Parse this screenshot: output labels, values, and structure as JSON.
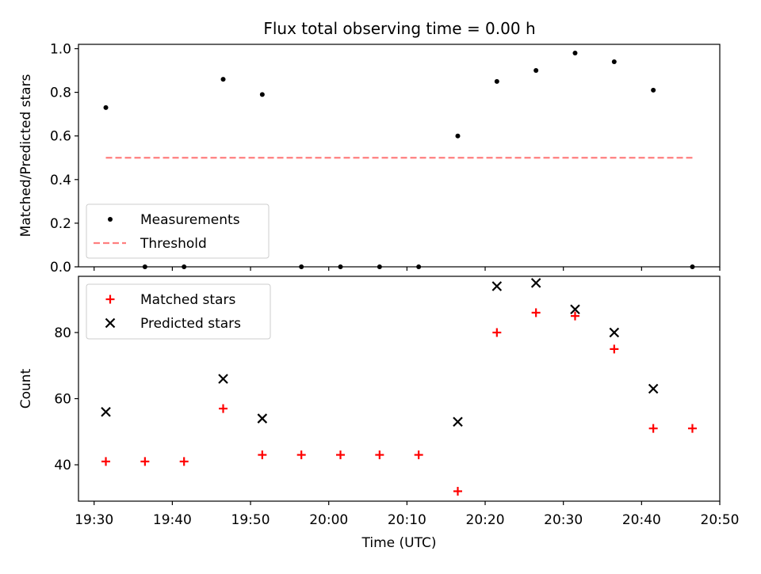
{
  "chart_data": [
    {
      "type": "scatter",
      "title": "Flux total observing time = 0.00 h",
      "xlabel": "",
      "ylabel": "Matched/Predicted stars",
      "xlim": [
        "19:28",
        "20:50"
      ],
      "ylim": [
        0,
        1.02
      ],
      "yticks": [
        0.0,
        0.2,
        0.4,
        0.6,
        0.8,
        1.0
      ],
      "ytick_labels": [
        "0.0",
        "0.2",
        "0.4",
        "0.6",
        "0.8",
        "1.0"
      ],
      "x_tick_marks": [
        "19:30",
        "19:40",
        "19:50",
        "20:00",
        "20:10",
        "20:20",
        "20:30",
        "20:40",
        "20:50"
      ],
      "grid": false,
      "legend_position": "bottom-left",
      "series": [
        {
          "name": "Measurements",
          "marker": "dot",
          "color": "#000000",
          "points": [
            {
              "x": "19:31:30",
              "y": 0.73
            },
            {
              "x": "19:36:30",
              "y": 0.0
            },
            {
              "x": "19:41:30",
              "y": 0.0
            },
            {
              "x": "19:46:30",
              "y": 0.86
            },
            {
              "x": "19:51:30",
              "y": 0.79
            },
            {
              "x": "19:56:30",
              "y": 0.0
            },
            {
              "x": "20:01:30",
              "y": 0.0
            },
            {
              "x": "20:06:30",
              "y": 0.0
            },
            {
              "x": "20:11:30",
              "y": 0.0
            },
            {
              "x": "20:16:30",
              "y": 0.6
            },
            {
              "x": "20:21:30",
              "y": 0.85
            },
            {
              "x": "20:26:30",
              "y": 0.9
            },
            {
              "x": "20:31:30",
              "y": 0.98
            },
            {
              "x": "20:36:30",
              "y": 0.94
            },
            {
              "x": "20:41:30",
              "y": 0.81
            },
            {
              "x": "20:46:30",
              "y": 0.0
            }
          ]
        },
        {
          "name": "Threshold",
          "marker": "dashed-line",
          "color": "#ff7f7f",
          "points": [
            {
              "x": "19:31:30",
              "y": 0.5
            },
            {
              "x": "20:46:30",
              "y": 0.5
            }
          ]
        }
      ]
    },
    {
      "type": "scatter",
      "title": "",
      "xlabel": "Time (UTC)",
      "ylabel": "Count",
      "xlim": [
        "19:28",
        "20:50"
      ],
      "ylim": [
        29,
        97
      ],
      "yticks": [
        40,
        60,
        80
      ],
      "ytick_labels": [
        "40",
        "60",
        "80"
      ],
      "xticks": [
        "19:30",
        "19:40",
        "19:50",
        "20:00",
        "20:10",
        "20:20",
        "20:30",
        "20:40",
        "20:50"
      ],
      "xtick_labels": [
        "19:30",
        "19:40",
        "19:50",
        "20:00",
        "20:10",
        "20:20",
        "20:30",
        "20:40",
        "20:50"
      ],
      "grid": false,
      "legend_position": "top-left",
      "series": [
        {
          "name": "Matched stars",
          "marker": "plus",
          "color": "#ff0000",
          "points": [
            {
              "x": "19:31:30",
              "y": 41
            },
            {
              "x": "19:36:30",
              "y": 41
            },
            {
              "x": "19:41:30",
              "y": 41
            },
            {
              "x": "19:46:30",
              "y": 57
            },
            {
              "x": "19:51:30",
              "y": 43
            },
            {
              "x": "19:56:30",
              "y": 43
            },
            {
              "x": "20:01:30",
              "y": 43
            },
            {
              "x": "20:06:30",
              "y": 43
            },
            {
              "x": "20:11:30",
              "y": 43
            },
            {
              "x": "20:16:30",
              "y": 32
            },
            {
              "x": "20:21:30",
              "y": 80
            },
            {
              "x": "20:26:30",
              "y": 86
            },
            {
              "x": "20:31:30",
              "y": 85
            },
            {
              "x": "20:36:30",
              "y": 75
            },
            {
              "x": "20:41:30",
              "y": 51
            },
            {
              "x": "20:46:30",
              "y": 51
            }
          ]
        },
        {
          "name": "Predicted stars",
          "marker": "x",
          "color": "#000000",
          "points": [
            {
              "x": "19:31:30",
              "y": 56
            },
            {
              "x": "19:46:30",
              "y": 66
            },
            {
              "x": "19:51:30",
              "y": 54
            },
            {
              "x": "20:16:30",
              "y": 53
            },
            {
              "x": "20:21:30",
              "y": 94
            },
            {
              "x": "20:26:30",
              "y": 95
            },
            {
              "x": "20:31:30",
              "y": 87
            },
            {
              "x": "20:36:30",
              "y": 80
            },
            {
              "x": "20:41:30",
              "y": 63
            }
          ]
        }
      ]
    }
  ]
}
